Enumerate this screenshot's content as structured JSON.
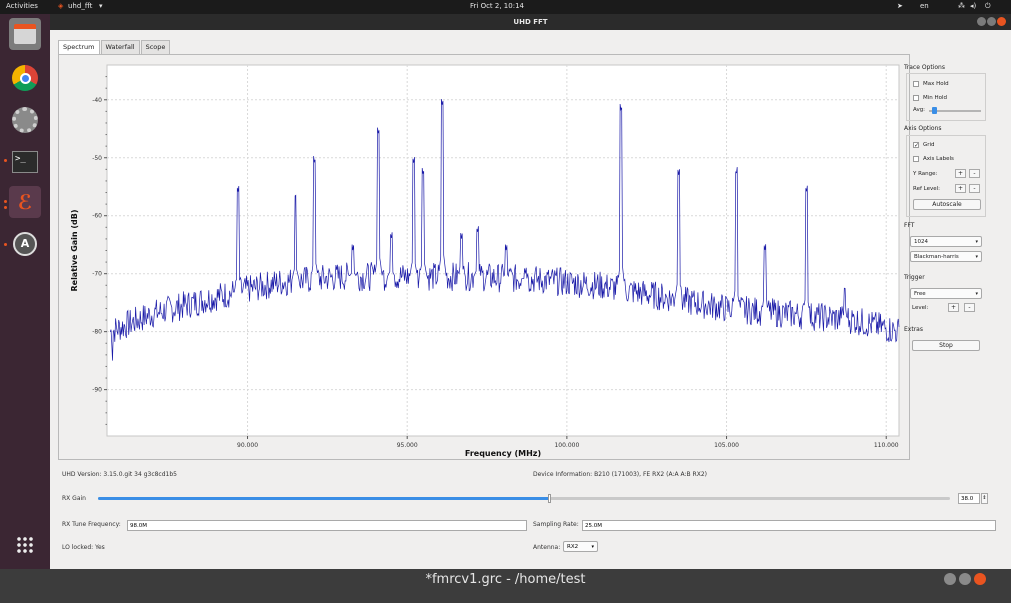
{
  "topbar": {
    "activities": "Activities",
    "app_name": "uhd_fft",
    "clock": "Fri Oct  2, 10:14",
    "lang": "en"
  },
  "window": {
    "title": "UHD FFT"
  },
  "tabs": [
    {
      "label": "Spectrum"
    },
    {
      "label": "Waterfall"
    },
    {
      "label": "Scope"
    }
  ],
  "chart_data": {
    "type": "line",
    "xlabel": "Frequency (MHz)",
    "ylabel": "Relative Gain (dB)",
    "xlim": [
      85.6,
      110.4
    ],
    "ylim": [
      -98,
      -34
    ],
    "x_ticks": [
      90,
      95,
      100,
      105,
      110
    ],
    "x_tick_labels": [
      "90.000",
      "95.000",
      "100.000",
      "105.000",
      "110.000"
    ],
    "y_ticks": [
      -40,
      -50,
      -60,
      -70,
      -80,
      -90
    ],
    "y_tick_labels": [
      "-40",
      "-50",
      "-60",
      "-70",
      "-80",
      "-90"
    ],
    "grid": true,
    "baseline": [
      [
        85.7,
        -80
      ],
      [
        87,
        -77
      ],
      [
        89,
        -74
      ],
      [
        91,
        -71.5
      ],
      [
        93,
        -70.5
      ],
      [
        95,
        -70.5
      ],
      [
        97,
        -70.5
      ],
      [
        99,
        -71
      ],
      [
        101,
        -72
      ],
      [
        103,
        -74
      ],
      [
        105,
        -76
      ],
      [
        107,
        -77
      ],
      [
        109,
        -78
      ],
      [
        110.4,
        -80
      ]
    ],
    "peaks": [
      [
        89.7,
        -56
      ],
      [
        91.5,
        -57
      ],
      [
        92.1,
        -51
      ],
      [
        93.3,
        -66
      ],
      [
        94.1,
        -46
      ],
      [
        94.5,
        -64
      ],
      [
        95.2,
        -51
      ],
      [
        95.5,
        -53
      ],
      [
        96.1,
        -41
      ],
      [
        96.7,
        -64
      ],
      [
        97.2,
        -63
      ],
      [
        98.1,
        -66
      ],
      [
        98.7,
        -70
      ],
      [
        101.7,
        -42
      ],
      [
        103.5,
        -53
      ],
      [
        105.3,
        -53
      ],
      [
        106.2,
        -66
      ],
      [
        107.5,
        -56
      ],
      [
        108.7,
        -73
      ]
    ],
    "series_color": "#1a1aa8"
  },
  "trace_options": {
    "title": "Trace Options",
    "max_hold": "Max Hold",
    "min_hold": "Min Hold",
    "avg": "Avg:"
  },
  "axis_options": {
    "title": "Axis Options",
    "grid": "Grid",
    "grid_check": "✓",
    "axis_labels": "Axis Labels",
    "y_range": "Y Range:",
    "ref_level": "Ref Level:",
    "plus": "+",
    "minus": "-",
    "autoscale": "Autoscale"
  },
  "fft": {
    "title": "FFT",
    "size": "1024",
    "window": "Blackman-harris"
  },
  "trigger": {
    "title": "Trigger",
    "mode": "Free",
    "level": "Level:"
  },
  "extras": {
    "title": "Extras",
    "stop": "Stop"
  },
  "bottom": {
    "uhd_version": "UHD Version: 3.15.0.git 34 g3c8cd1b5",
    "device_info": "Device Information: B210 (171003), FE RX2 (A:A A:B RX2)",
    "rx_gain_label": "RX Gain",
    "rx_gain_value": "38.0",
    "rx_gain_fraction": 0.53,
    "rx_tune_label": "RX Tune Frequency:",
    "rx_tune_value": "98.0M",
    "sampling_label": "Sampling Rate:",
    "sampling_value": "25.0M",
    "lo_locked": "LO locked: Yes",
    "antenna_label": "Antenna:",
    "antenna_value": "RX2"
  },
  "behind_window": {
    "title": "*fmrcv1.grc - /home/test"
  }
}
